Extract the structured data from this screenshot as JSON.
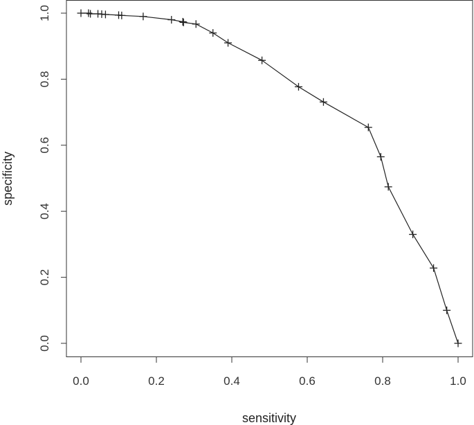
{
  "chart_data": {
    "type": "line",
    "title": "",
    "xlabel": "sensitivity",
    "ylabel": "specificity",
    "xlim": [
      0,
      1
    ],
    "ylim": [
      0,
      1
    ],
    "grid": false,
    "legend": "none",
    "x_ticks": [
      0.0,
      0.2,
      0.4,
      0.6,
      0.8,
      1.0
    ],
    "y_ticks": [
      0.0,
      0.2,
      0.4,
      0.6,
      0.8,
      1.0
    ],
    "x_tick_labels": [
      "0.0",
      "0.2",
      "0.4",
      "0.6",
      "0.8",
      "1.0"
    ],
    "y_tick_labels": [
      "0.0",
      "0.2",
      "0.4",
      "0.6",
      "0.8",
      "1.0"
    ],
    "series": [
      {
        "marker": "plus",
        "points": [
          {
            "x": 0.0,
            "y": 1.0
          },
          {
            "x": 0.02,
            "y": 1.0
          },
          {
            "x": 0.025,
            "y": 0.998
          },
          {
            "x": 0.045,
            "y": 0.998
          },
          {
            "x": 0.055,
            "y": 0.997
          },
          {
            "x": 0.065,
            "y": 0.996
          },
          {
            "x": 0.1,
            "y": 0.994
          },
          {
            "x": 0.108,
            "y": 0.993
          },
          {
            "x": 0.165,
            "y": 0.99
          },
          {
            "x": 0.24,
            "y": 0.98
          },
          {
            "x": 0.27,
            "y": 0.974
          },
          {
            "x": 0.272,
            "y": 0.972
          },
          {
            "x": 0.305,
            "y": 0.967
          },
          {
            "x": 0.35,
            "y": 0.94
          },
          {
            "x": 0.39,
            "y": 0.91
          },
          {
            "x": 0.48,
            "y": 0.857
          },
          {
            "x": 0.577,
            "y": 0.777
          },
          {
            "x": 0.643,
            "y": 0.731
          },
          {
            "x": 0.762,
            "y": 0.654
          },
          {
            "x": 0.795,
            "y": 0.565
          },
          {
            "x": 0.815,
            "y": 0.474
          },
          {
            "x": 0.88,
            "y": 0.33
          },
          {
            "x": 0.935,
            "y": 0.228
          },
          {
            "x": 0.97,
            "y": 0.1
          },
          {
            "x": 1.0,
            "y": 0.0
          }
        ]
      }
    ],
    "colors": {
      "line": "#222222",
      "marker": "#222222",
      "axis": "#333333",
      "text": "#333333",
      "background": "#ffffff"
    }
  }
}
